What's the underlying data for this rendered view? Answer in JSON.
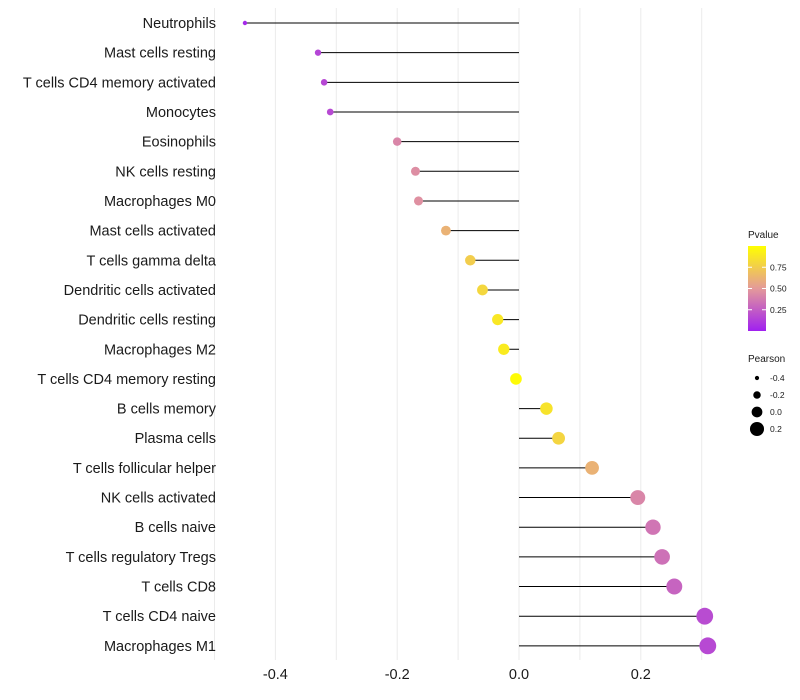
{
  "chart_data": {
    "type": "lollipop",
    "title": "",
    "xlabel": "",
    "ylabel": "",
    "xlim": [
      -0.5,
      0.35
    ],
    "xticks": [
      -0.4,
      -0.2,
      0.0,
      0.2
    ],
    "xtick_labels": [
      "-0.4",
      "-0.2",
      "0.0",
      "0.2"
    ],
    "grid": true,
    "points": [
      {
        "label": "Neutrophils",
        "pearson": -0.45,
        "pvalue": 0.04
      },
      {
        "label": "Mast cells resting",
        "pearson": -0.33,
        "pvalue": 0.15
      },
      {
        "label": "T cells CD4 memory activated",
        "pearson": -0.32,
        "pvalue": 0.16
      },
      {
        "label": "Monocytes",
        "pearson": -0.31,
        "pvalue": 0.17
      },
      {
        "label": "Eosinophils",
        "pearson": -0.2,
        "pvalue": 0.42
      },
      {
        "label": "NK cells resting",
        "pearson": -0.17,
        "pvalue": 0.45
      },
      {
        "label": "Macrophages M0",
        "pearson": -0.165,
        "pvalue": 0.46
      },
      {
        "label": "Mast cells activated",
        "pearson": -0.12,
        "pvalue": 0.62
      },
      {
        "label": "T cells gamma delta",
        "pearson": -0.08,
        "pvalue": 0.75
      },
      {
        "label": "Dendritic cells activated",
        "pearson": -0.06,
        "pvalue": 0.8
      },
      {
        "label": "Dendritic cells resting",
        "pearson": -0.035,
        "pvalue": 0.88
      },
      {
        "label": "Macrophages M2",
        "pearson": -0.025,
        "pvalue": 0.9
      },
      {
        "label": "T cells CD4 memory resting",
        "pearson": -0.005,
        "pvalue": 0.98
      },
      {
        "label": "B cells memory",
        "pearson": 0.045,
        "pvalue": 0.86
      },
      {
        "label": "Plasma cells",
        "pearson": 0.065,
        "pvalue": 0.79
      },
      {
        "label": "T cells follicular helper",
        "pearson": 0.12,
        "pvalue": 0.62
      },
      {
        "label": "NK cells activated",
        "pearson": 0.195,
        "pvalue": 0.42
      },
      {
        "label": "B cells naive",
        "pearson": 0.22,
        "pvalue": 0.35
      },
      {
        "label": "T cells regulatory  Tregs",
        "pearson": 0.235,
        "pvalue": 0.33
      },
      {
        "label": "T cells CD8",
        "pearson": 0.255,
        "pvalue": 0.28
      },
      {
        "label": "T cells CD4 naive",
        "pearson": 0.305,
        "pvalue": 0.18
      },
      {
        "label": "Macrophages M1",
        "pearson": 0.31,
        "pvalue": 0.17
      }
    ],
    "legend": {
      "placement": "right",
      "color": {
        "title": "Pvalue",
        "ticks": [
          0.25,
          0.5,
          0.75
        ],
        "tick_labels": [
          "0.25",
          "0.50",
          "0.75"
        ],
        "range": [
          0.0,
          1.0
        ],
        "low_color": "#a020f0",
        "mid_color": "#e49a9a",
        "high_color": "#ffff00"
      },
      "size": {
        "title": "Pearson",
        "values": [
          -0.4,
          -0.2,
          0.0,
          0.2
        ],
        "labels": [
          "-0.4",
          "-0.2",
          "0.0",
          "0.2"
        ]
      }
    }
  }
}
